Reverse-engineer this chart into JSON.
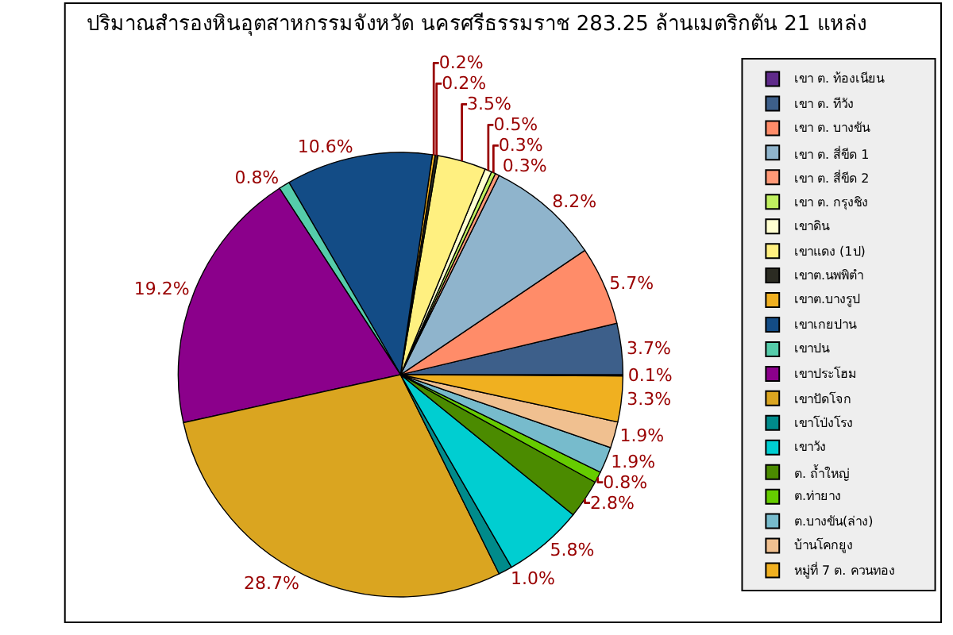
{
  "chart_data": {
    "type": "pie",
    "title": "ปริมาณสำรองหินอุตสาหกรรมจังหวัด นครศรีธรรมราช 283.25 ล้านเมตริกตัน 21 แหล่ง",
    "categories": [
      "เขา ต. ท้องเนียน",
      "เขา ต. ทีวัง",
      "เขา ต. บางขัน",
      "เขา ต. สี่ขีด 1",
      "เขา ต. สี่ขีด 2",
      "เขา ต. กรุงชิง",
      "เขาดิน",
      "เขาแดง (1ป)",
      "เขาต.นพพิตำ",
      "เขาต.บางรูป",
      "เขาเกยปาน",
      "เขาปน",
      "เขาประโฮม",
      "เขาปัดโจก",
      "เขาโป่งโรง",
      "เขาวัง",
      "ต. ถ้ำใหญ่",
      "ต.ท่ายาง",
      "ต.บางขัน(ล่าง)",
      "บ้านโคกยูง",
      "หมู่ที่ 7 ต. ควนทอง"
    ],
    "values": [
      0.1,
      3.7,
      5.7,
      8.2,
      0.3,
      0.3,
      0.5,
      3.5,
      0.2,
      0.2,
      10.6,
      0.8,
      19.2,
      28.7,
      1.0,
      5.8,
      2.8,
      0.8,
      1.9,
      1.9,
      3.3
    ],
    "value_labels": [
      "0.1%",
      "3.7%",
      "5.7%",
      "8.2%",
      "0.3%",
      "0.3%",
      "0.5%",
      "3.5%",
      "0.2%",
      "0.2%",
      "10.6%",
      "0.8%",
      "19.2%",
      "28.7%",
      "1.0%",
      "5.8%",
      "2.8%",
      "0.8%",
      "1.9%",
      "1.9%",
      "3.3%"
    ],
    "colors": [
      "#5f2a8a",
      "#3d5f8a",
      "#ff8c69",
      "#8fb4cc",
      "#ff9977",
      "#c0f060",
      "#ffffd0",
      "#fff080",
      "#2b2b22",
      "#f0b020",
      "#134c86",
      "#55ccaa",
      "#8b008b",
      "#daa520",
      "#008b8b",
      "#00ced1",
      "#4b8b00",
      "#66cc00",
      "#77bbcc",
      "#f0c090",
      "#f0b020"
    ],
    "legend": "right"
  }
}
